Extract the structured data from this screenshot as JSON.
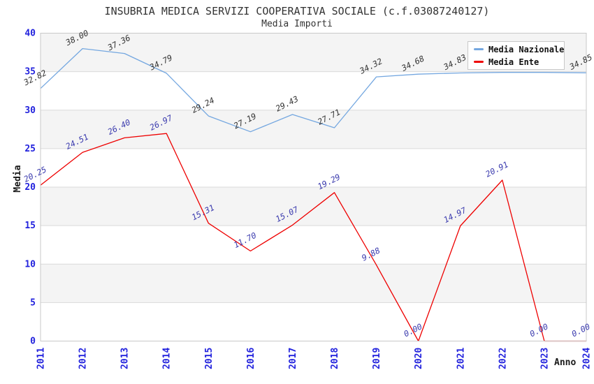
{
  "chart_data": {
    "type": "line",
    "title": "INSUBRIA MEDICA SERVIZI COOPERATIVA SOCIALE (c.f.03087240127)",
    "subtitle": "Media Importi",
    "xlabel": "Anno",
    "ylabel": "Media",
    "x": [
      2011,
      2012,
      2013,
      2014,
      2015,
      2016,
      2017,
      2018,
      2019,
      2020,
      2021,
      2022,
      2023,
      2024
    ],
    "ylim": [
      0,
      40
    ],
    "ytick_step": 5,
    "grid": "horizontal-bands",
    "legend_position": "top-right",
    "colors": {
      "band_gray": "#f4f4f4",
      "band_white": "#ffffff",
      "gridline": "#dadada",
      "plot_border": "#c8c8c8",
      "axis_tick_label": "#2222dd",
      "title_text": "#333333",
      "axis_title_text": "#1a1a1a"
    },
    "series": [
      {
        "name": "Media Nazionale",
        "color": "#74a7e0",
        "label_color": "#333333",
        "values": [
          32.82,
          38.0,
          37.36,
          34.79,
          29.24,
          27.19,
          29.43,
          27.71,
          34.32,
          34.68,
          34.83,
          34.9,
          34.9,
          34.85
        ],
        "point_labels": [
          "32.82",
          "38.00",
          "37.36",
          "34.79",
          "29.24",
          "27.19",
          "29.43",
          "27.71",
          "34.32",
          "34.68",
          "34.83",
          "",
          "",
          "34.85"
        ]
      },
      {
        "name": "Media Ente",
        "color": "#ee0000",
        "label_color": "#3b3bae",
        "values": [
          20.25,
          24.51,
          26.4,
          26.97,
          15.31,
          11.7,
          15.07,
          19.29,
          9.88,
          0.0,
          14.97,
          20.91,
          0.0,
          0.0
        ],
        "point_labels": [
          "20.25",
          "24.51",
          "26.40",
          "26.97",
          "15.31",
          "11.70",
          "15.07",
          "19.29",
          "9.88",
          "0.00",
          "14.97",
          "20.91",
          "0.00",
          "0.00"
        ]
      }
    ]
  }
}
